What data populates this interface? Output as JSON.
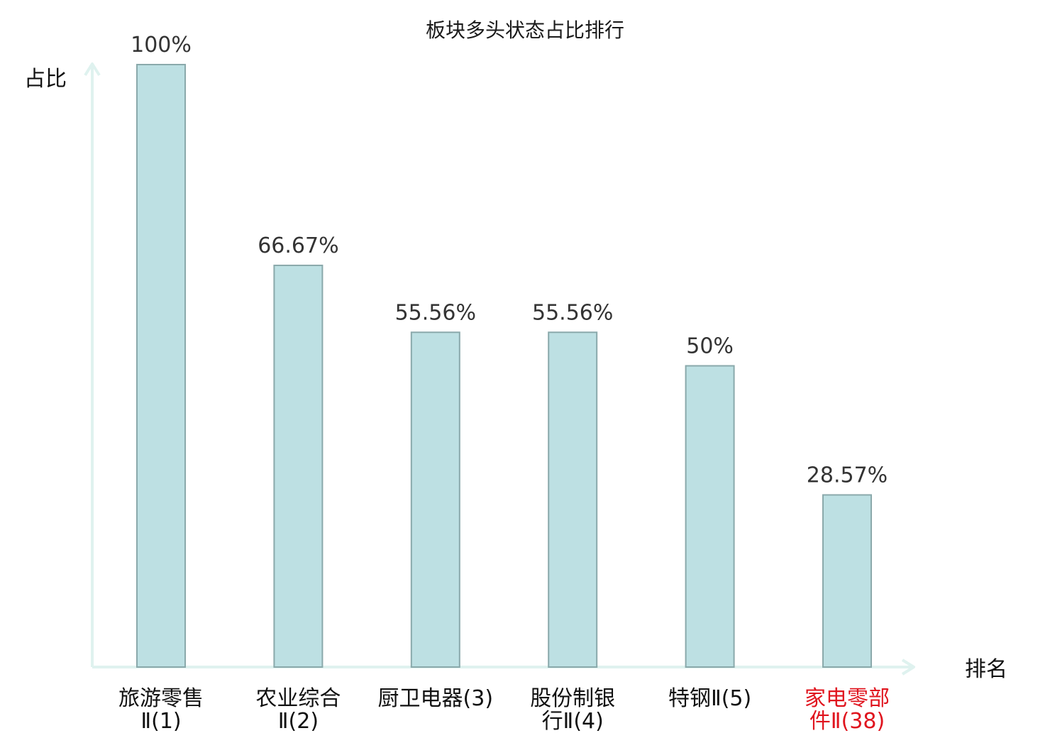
{
  "chart_data": {
    "type": "bar",
    "title": "板块多头状态占比排行",
    "ylabel": "占比",
    "xlabel": "排名",
    "ylim": [
      0,
      100
    ],
    "grid": false,
    "categories": [
      [
        "旅游零售",
        "Ⅱ(1)"
      ],
      [
        "农业综合",
        "Ⅱ(2)"
      ],
      [
        "厨卫电器(3)"
      ],
      [
        "股份制银",
        "行Ⅱ(4)"
      ],
      [
        "特钢Ⅱ(5)"
      ],
      [
        "家电零部",
        "件Ⅱ(38)"
      ]
    ],
    "values": [
      100,
      66.67,
      55.56,
      55.56,
      50,
      28.57
    ],
    "value_labels": [
      "100%",
      "66.67%",
      "55.56%",
      "55.56%",
      "50%",
      "28.57%"
    ],
    "highlight_index": 5
  },
  "colors": {
    "bar_fill": "#bde0e3",
    "bar_stroke": "#8aa9ab",
    "axis": "#dff2ef",
    "highlight_text": "#e0141e"
  }
}
